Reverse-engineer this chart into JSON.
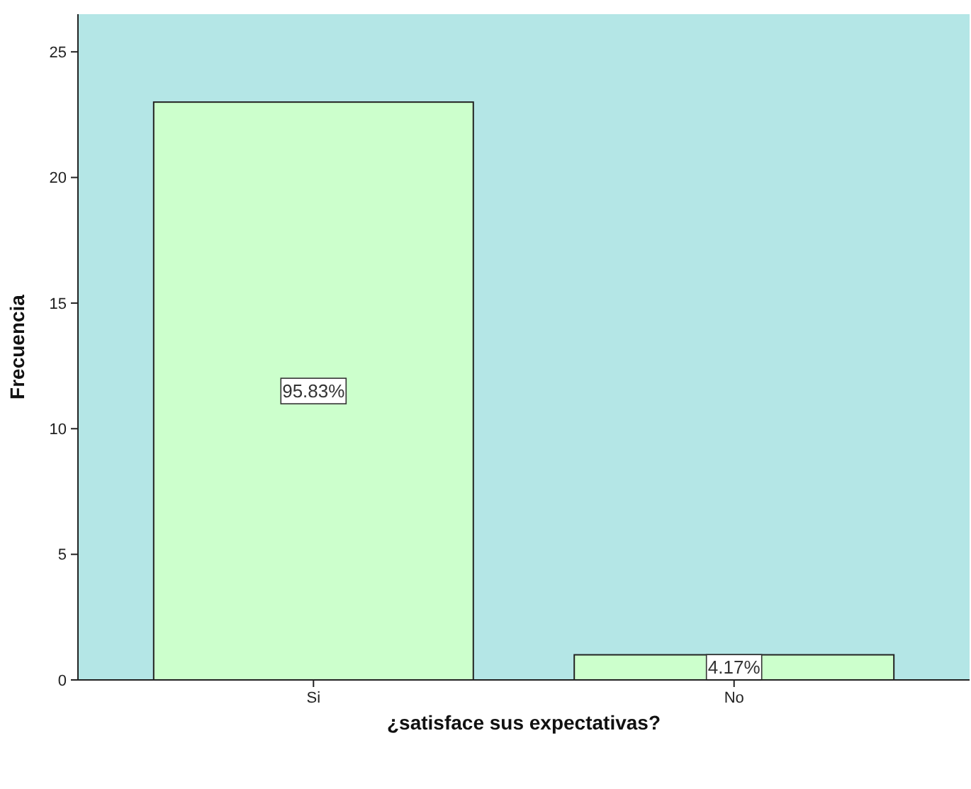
{
  "chart_data": {
    "type": "bar",
    "xlabel": "¿satisface sus expectativas?",
    "ylabel": "Frecuencia",
    "categories": [
      "Si",
      "No"
    ],
    "values": [
      23,
      1
    ],
    "color": "#ccffcc",
    "annotations": [
      "95.83%",
      "4.17%"
    ],
    "ylim": [
      0,
      26.5
    ],
    "yticks": [
      0,
      5,
      10,
      15,
      20,
      25
    ],
    "grid": false
  }
}
